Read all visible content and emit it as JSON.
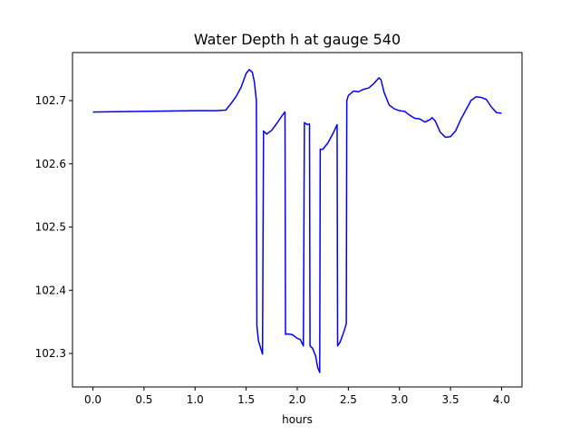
{
  "chart_data": {
    "type": "line",
    "title": "Water Depth h at gauge 540",
    "xlabel": "hours",
    "ylabel": "",
    "xlim": [
      -0.2,
      4.2
    ],
    "ylim": [
      102.247,
      102.776
    ],
    "xticks": [
      0.0,
      0.5,
      1.0,
      1.5,
      2.0,
      2.5,
      3.0,
      3.5,
      4.0
    ],
    "xtick_labels": [
      "0.0",
      "0.5",
      "1.0",
      "1.5",
      "2.0",
      "2.5",
      "3.0",
      "3.5",
      "4.0"
    ],
    "yticks": [
      102.3,
      102.4,
      102.5,
      102.6,
      102.7
    ],
    "ytick_labels": [
      "102.3",
      "102.4",
      "102.5",
      "102.6",
      "102.7"
    ],
    "grid": false,
    "legend": "none",
    "series": [
      {
        "color": "#0000ff",
        "points": [
          [
            0.0,
            102.682
          ],
          [
            0.5,
            102.683
          ],
          [
            1.0,
            102.684
          ],
          [
            1.2,
            102.684
          ],
          [
            1.3,
            102.685
          ],
          [
            1.35,
            102.695
          ],
          [
            1.4,
            102.706
          ],
          [
            1.45,
            102.721
          ],
          [
            1.5,
            102.743
          ],
          [
            1.53,
            102.749
          ],
          [
            1.56,
            102.745
          ],
          [
            1.58,
            102.73
          ],
          [
            1.6,
            102.7
          ],
          [
            1.605,
            102.344
          ],
          [
            1.62,
            102.32
          ],
          [
            1.66,
            102.299
          ],
          [
            1.67,
            102.652
          ],
          [
            1.7,
            102.647
          ],
          [
            1.75,
            102.653
          ],
          [
            1.8,
            102.664
          ],
          [
            1.86,
            102.678
          ],
          [
            1.88,
            102.682
          ],
          [
            1.885,
            102.33
          ],
          [
            1.9,
            102.331
          ],
          [
            1.95,
            102.33
          ],
          [
            2.0,
            102.324
          ],
          [
            2.03,
            102.322
          ],
          [
            2.06,
            102.312
          ],
          [
            2.07,
            102.665
          ],
          [
            2.1,
            102.662
          ],
          [
            2.12,
            102.663
          ],
          [
            2.125,
            102.312
          ],
          [
            2.15,
            102.308
          ],
          [
            2.18,
            102.296
          ],
          [
            2.2,
            102.278
          ],
          [
            2.22,
            102.27
          ],
          [
            2.225,
            102.623
          ],
          [
            2.25,
            102.623
          ],
          [
            2.3,
            102.633
          ],
          [
            2.35,
            102.648
          ],
          [
            2.39,
            102.662
          ],
          [
            2.395,
            102.312
          ],
          [
            2.42,
            102.318
          ],
          [
            2.46,
            102.336
          ],
          [
            2.48,
            102.347
          ],
          [
            2.485,
            102.7
          ],
          [
            2.5,
            102.708
          ],
          [
            2.55,
            102.715
          ],
          [
            2.6,
            102.714
          ],
          [
            2.65,
            102.718
          ],
          [
            2.7,
            102.72
          ],
          [
            2.75,
            102.727
          ],
          [
            2.8,
            102.736
          ],
          [
            2.82,
            102.733
          ],
          [
            2.85,
            102.713
          ],
          [
            2.9,
            102.693
          ],
          [
            2.95,
            102.687
          ],
          [
            3.0,
            102.684
          ],
          [
            3.05,
            102.683
          ],
          [
            3.1,
            102.677
          ],
          [
            3.15,
            102.672
          ],
          [
            3.2,
            102.671
          ],
          [
            3.25,
            102.666
          ],
          [
            3.3,
            102.67
          ],
          [
            3.32,
            102.673
          ],
          [
            3.35,
            102.668
          ],
          [
            3.4,
            102.65
          ],
          [
            3.45,
            102.642
          ],
          [
            3.5,
            102.643
          ],
          [
            3.55,
            102.652
          ],
          [
            3.6,
            102.67
          ],
          [
            3.65,
            102.685
          ],
          [
            3.7,
            102.7
          ],
          [
            3.75,
            102.706
          ],
          [
            3.8,
            102.705
          ],
          [
            3.85,
            102.702
          ],
          [
            3.9,
            102.69
          ],
          [
            3.95,
            102.681
          ],
          [
            4.0,
            102.68
          ]
        ]
      }
    ]
  }
}
